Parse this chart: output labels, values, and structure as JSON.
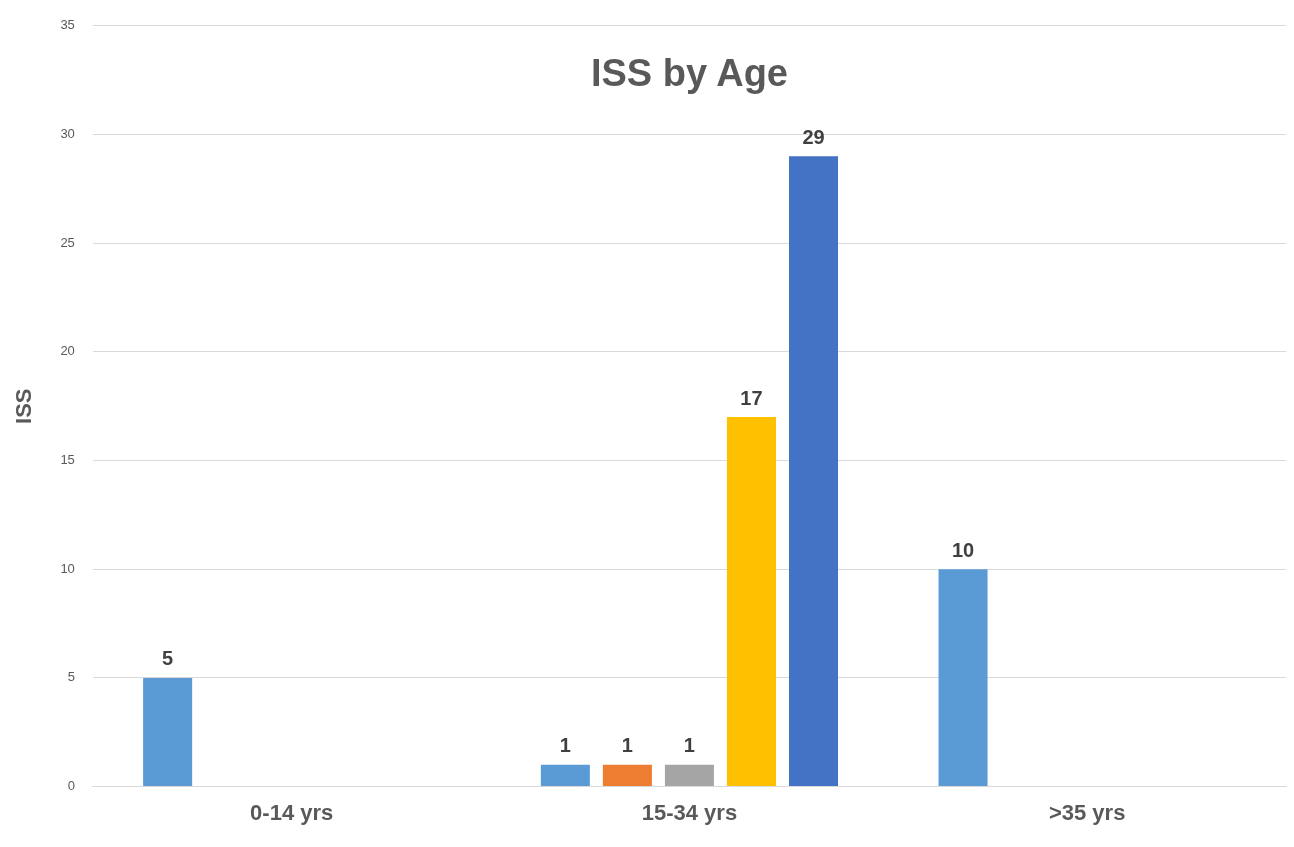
{
  "chart_data": {
    "type": "bar",
    "title": "ISS by Age",
    "ylabel": "ISS",
    "categories": [
      "0-14 yrs",
      "15-34 yrs",
      ">35 yrs"
    ],
    "series": [
      {
        "color": "#5b9bd5",
        "values": [
          5,
          1,
          10
        ]
      },
      {
        "color": "#ed7d31",
        "values": [
          null,
          1,
          null
        ]
      },
      {
        "color": "#a5a5a5",
        "values": [
          null,
          1,
          null
        ]
      },
      {
        "color": "#ffc000",
        "values": [
          null,
          17,
          null
        ]
      },
      {
        "color": "#4472c4",
        "values": [
          null,
          29,
          null
        ]
      }
    ],
    "ylim": [
      0,
      35
    ],
    "yticks": [
      0,
      5,
      10,
      15,
      20,
      25,
      30,
      35
    ],
    "grid": "y",
    "legend": false,
    "data_labels": true
  }
}
